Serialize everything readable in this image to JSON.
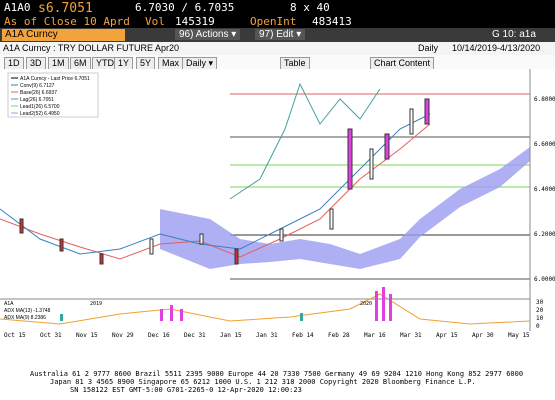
{
  "header": {
    "ticker": "A1A0",
    "last": "s6.7051",
    "bid_ask": "6.7030 / 6.7035",
    "size": "8 x 40",
    "as_of": "As of Close 10 Aprd",
    "vol_label": "Vol",
    "vol": "145319",
    "oi_label": "OpenInt",
    "oi": "483413"
  },
  "toolbar": {
    "security": "A1A Curncy",
    "actions": "96) Actions ▾",
    "edit": "97) Edit ▾",
    "page": "G 10: a1a"
  },
  "title_bar": {
    "title": "A1A Curncy : TRY DOLLAR FUTURE Apr20",
    "freq": "Daily",
    "range": "10/14/2019-4/13/2020"
  },
  "buttons": [
    "1D",
    "3D",
    "1M",
    "6M",
    "YTD",
    "1Y",
    "5Y",
    "Max"
  ],
  "period": "Daily ▾",
  "table": "Table",
  "chart_content": "Chart Content",
  "legend": [
    "A1A Curncy - Last Price 6.7051",
    "Conv(9) 6.7127",
    "Base(26) 6.6937",
    "Lag(26) 6.7051",
    "Lead1(26) 6.5700",
    "Lead2(52) 6.4950"
  ],
  "price_axis": [
    "6.8000",
    "6.6000",
    "6.4000",
    "6.2000",
    "6.0000"
  ],
  "indicator_legend": [
    "A1A",
    "ADX MA(13) -1.3748",
    "ADX MA(9) 8.2386"
  ],
  "indicator_axis": [
    "30",
    "20",
    "10",
    "0"
  ],
  "dates": [
    "Oct 15",
    "Oct 31",
    "Nov 15",
    "Nov 29",
    "Dec 16",
    "Dec 31",
    "Jan 15",
    "Jan 31",
    "Feb 14",
    "Feb 28",
    "Mar 16",
    "Mar 31",
    "Apr 15",
    "Apr 30",
    "May 15"
  ],
  "years": [
    "2019",
    "2020"
  ],
  "footer": [
    "Australia 61 2 9777 8600 Brazil 5511 2395 9000 Europe 44 20 7330 7500 Germany 49 69 9204 1210 Hong Kong 852 2977 6000",
    "Japan 81 3 4565 8900 Singapore 65 6212 1000 U.S. 1 212 318 2000 Copyright 2020 Bloomberg Finance L.P.",
    "SN 158122 EST GMT-5:00 G701-2265-0 12-Apr-2020 12:00:23"
  ]
}
